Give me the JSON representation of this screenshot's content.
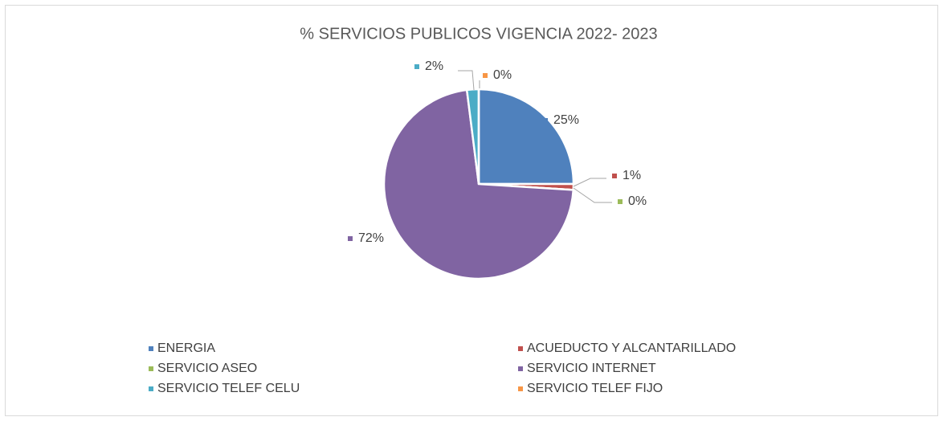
{
  "chart_data": {
    "type": "pie",
    "title": "% SERVICIOS PUBLICOS VIGENCIA 2022- 2023",
    "categories": [
      "ENERGIA",
      "ACUEDUCTO Y ALCANTARILLADO",
      "SERVICIO ASEO",
      "SERVICIO INTERNET",
      "SERVICIO TELEF CELU",
      "SERVICIO TELEF FIJO"
    ],
    "values": [
      25,
      1,
      0,
      72,
      2,
      0
    ],
    "value_labels": [
      "25%",
      "1%",
      "0%",
      "72%",
      "2%",
      "0%"
    ],
    "colors": [
      "#4f81bd",
      "#c0504d",
      "#9bbb59",
      "#8064a2",
      "#4bacc6",
      "#f79646"
    ],
    "legend": "bottom"
  }
}
